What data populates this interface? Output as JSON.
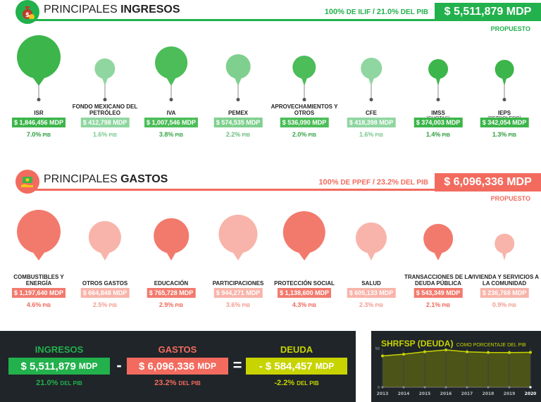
{
  "ingresos": {
    "title_pre": "PRINCIPALES",
    "title_bold": "INGRESOS",
    "share_pct": "100%",
    "share_ref": "DE ILIF",
    "share_sep": "/",
    "share_pib": "21.0%",
    "share_pib_unit": "DEL PIB",
    "total": "$ 5,511,879 MDP",
    "propuesto": "PROPUESTO",
    "color": "#22b14c",
    "items": [
      {
        "label": "ISR",
        "sub": "",
        "value": "$ 1,846,456 MDP",
        "pib_val": "7.0%",
        "pib_unit": "PIB",
        "amount": 1846456,
        "fill": "#3cb54a",
        "box": "#3cb54a",
        "pib_color": "#2e9e3e"
      },
      {
        "label": "FONDO MEXICANO DEL PETRÓLEO",
        "sub": "",
        "value": "$ 412,798 MDP",
        "pib_val": "1.6%",
        "pib_unit": "PIB",
        "amount": 412798,
        "fill": "#8fd6a0",
        "box": "#8fd6a0",
        "pib_color": "#7bc98f"
      },
      {
        "label": "IVA",
        "sub": "",
        "value": "$ 1,007,546 MDP",
        "pib_val": "3.8%",
        "pib_unit": "PIB",
        "amount": 1007546,
        "fill": "#4cbd58",
        "box": "#4cbd58",
        "pib_color": "#38a648"
      },
      {
        "label": "PEMEX",
        "sub": "",
        "value": "$ 574,535 MDP",
        "pib_val": "2.2%",
        "pib_unit": "PIB",
        "amount": 574535,
        "fill": "#7fd08f",
        "box": "#7fd08f",
        "pib_color": "#6cbd7d"
      },
      {
        "label": "APROVECHAMIENTOS Y OTROS",
        "sub": "",
        "value": "$ 536,090 MDP",
        "pib_val": "2.0%",
        "pib_unit": "PIB",
        "amount": 536090,
        "fill": "#4cbd58",
        "box": "#4cbd58",
        "pib_color": "#38a648"
      },
      {
        "label": "CFE",
        "sub": "",
        "value": "$ 418,398 MDP",
        "pib_val": "1.6%",
        "pib_unit": "PIB",
        "amount": 418398,
        "fill": "#8fd6a0",
        "box": "#8fd6a0",
        "pib_color": "#7bc98f"
      },
      {
        "label": "IMSS",
        "sub": "(CUOTAS)",
        "value": "$ 374,003 MDP",
        "pib_val": "1.4%",
        "pib_unit": "PIB",
        "amount": 374003,
        "fill": "#3cb54a",
        "box": "#3cb54a",
        "pib_color": "#2e9e3e"
      },
      {
        "label": "IEPS",
        "sub": "(PETROLERO)",
        "value": "$ 342,054 MDP",
        "pib_val": "1.3%",
        "pib_unit": "PIB",
        "amount": 342054,
        "fill": "#3cb54a",
        "box": "#3cb54a",
        "pib_color": "#2e9e3e"
      }
    ]
  },
  "gastos": {
    "title_pre": "PRINCIPALES",
    "title_bold": "GASTOS",
    "share_pct": "100%",
    "share_ref": "DE PPEF",
    "share_sep": "/",
    "share_pib": "23.2%",
    "share_pib_unit": "DEL PIB",
    "total": "$ 6,096,336 MDP",
    "propuesto": "PROPUESTO",
    "color": "#f26b5e",
    "items": [
      {
        "label": "COMBUSTIBLES Y ENERGÍA",
        "sub": "",
        "value": "$ 1,197,640 MDP",
        "pib_val": "4.6%",
        "pib_unit": "PIB",
        "amount": 1197640,
        "fill": "#f27a6d",
        "box": "#f27a6d",
        "pib_color": "#ee6b5d"
      },
      {
        "label": "OTROS GASTOS",
        "sub": "",
        "value": "$ 664,848 MDP",
        "pib_val": "2.5%",
        "pib_unit": "PIB",
        "amount": 664848,
        "fill": "#f8b4aa",
        "box": "#f8b4aa",
        "pib_color": "#f19e92"
      },
      {
        "label": "EDUCACIÓN",
        "sub": "",
        "value": "$ 765,728 MDP",
        "pib_val": "2.9%",
        "pib_unit": "PIB",
        "amount": 765728,
        "fill": "#f27a6d",
        "box": "#f27a6d",
        "pib_color": "#ee6b5d"
      },
      {
        "label": "PARTICIPACIONES",
        "sub": "",
        "value": "$ 944,271 MDP",
        "pib_val": "3.6%",
        "pib_unit": "PIB",
        "amount": 944271,
        "fill": "#f8b4aa",
        "box": "#f8b4aa",
        "pib_color": "#f19e92"
      },
      {
        "label": "PROTECCIÓN SOCIAL",
        "sub": "",
        "value": "$ 1,138,600 MDP",
        "pib_val": "4.3%",
        "pib_unit": "PIB",
        "amount": 1138600,
        "fill": "#f27a6d",
        "box": "#f27a6d",
        "pib_color": "#ee6b5d"
      },
      {
        "label": "SALUD",
        "sub": "",
        "value": "$ 605,133 MDP",
        "pib_val": "2.3%",
        "pib_unit": "PIB",
        "amount": 605133,
        "fill": "#f8b4aa",
        "box": "#f8b4aa",
        "pib_color": "#f19e92"
      },
      {
        "label": "TRANSACCIONES DE LA DEUDA PÚBLICA",
        "sub": "",
        "value": "$ 543,349 MDP",
        "pib_val": "2.1%",
        "pib_unit": "PIB",
        "amount": 543349,
        "fill": "#f27a6d",
        "box": "#f27a6d",
        "pib_color": "#ee6b5d"
      },
      {
        "label": "VIVIENDA Y SERVICIOS A LA COMUNIDAD",
        "sub": "",
        "value": "$ 236,768 MDP",
        "pib_val": "0.9%",
        "pib_unit": "PIB",
        "amount": 236768,
        "fill": "#f8b4aa",
        "box": "#f8b4aa",
        "pib_color": "#f19e92"
      }
    ]
  },
  "summary": {
    "ingresos": {
      "title": "INGRESOS",
      "value": "$ 5,511,879",
      "unit": "MDP",
      "pib_val": "21.0%",
      "pib_unit": "DEL PIB",
      "color": "#22b14c"
    },
    "minus": "-",
    "gastos": {
      "title": "GASTOS",
      "value": "$ 6,096,336",
      "unit": "MDP",
      "pib_val": "23.2%",
      "pib_unit": "DEL PIB",
      "color": "#f26b5e"
    },
    "equals": "=",
    "deuda": {
      "title": "DEUDA",
      "value": "- $ 584,457",
      "unit": "MDP",
      "pib_val": "-2.2%",
      "pib_unit": "DEL PIB",
      "color": "#c8d400"
    }
  },
  "chart_data": {
    "type": "line",
    "title": "SHRFSP (DEUDA)",
    "subtitle": "COMO PORCENTAJE DEL PIB",
    "x": [
      "2013",
      "2014",
      "2015",
      "2016",
      "2017",
      "2018",
      "2019",
      "2020"
    ],
    "values": [
      40.4,
      42.6,
      45.8,
      48.2,
      45.7,
      44.9,
      44.8,
      45.0
    ],
    "ytick_labels": [
      "50",
      "0"
    ],
    "ylim": [
      0,
      50
    ],
    "highlight_x": "2020",
    "color": "#c8d400"
  }
}
